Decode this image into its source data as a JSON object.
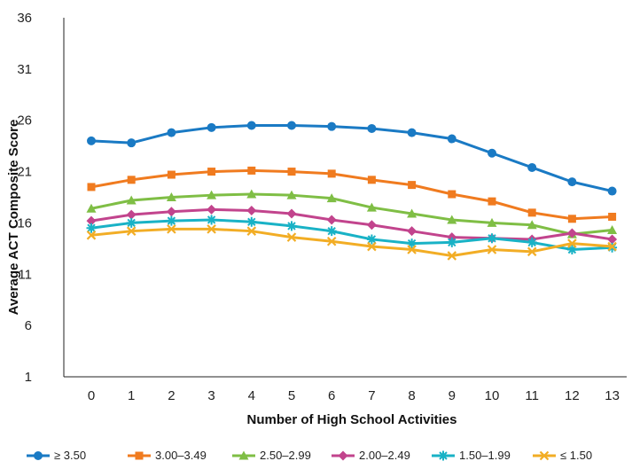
{
  "chart_data": {
    "type": "line",
    "xlabel": "Number of High School Activities",
    "ylabel": "Average ACT Composite Score",
    "x": [
      0,
      1,
      2,
      3,
      4,
      5,
      6,
      7,
      8,
      9,
      10,
      11,
      12,
      13
    ],
    "x_tick_labels": [
      "0",
      "1",
      "2",
      "3",
      "4",
      "5",
      "6",
      "7",
      "8",
      "9",
      "10",
      "11",
      "12",
      "13"
    ],
    "y_ticks": [
      1,
      6,
      11,
      16,
      21,
      26,
      31,
      36
    ],
    "y_tick_labels": [
      "1",
      "6",
      "11",
      "16",
      "21",
      "26",
      "31",
      "36"
    ],
    "ylim": [
      1,
      36
    ],
    "grid": false,
    "legend_position": "bottom",
    "series": [
      {
        "name": "≥ 3.50",
        "color": "#1a7ac4",
        "marker": "circle",
        "values": [
          24.0,
          23.8,
          24.8,
          25.3,
          25.5,
          25.5,
          25.4,
          25.2,
          24.8,
          24.2,
          22.8,
          21.4,
          20.0,
          19.1
        ]
      },
      {
        "name": "3.00–3.49",
        "color": "#f07b1f",
        "marker": "square",
        "values": [
          19.5,
          20.2,
          20.7,
          21.0,
          21.1,
          21.0,
          20.8,
          20.2,
          19.7,
          18.8,
          18.1,
          17.0,
          16.4,
          16.6
        ]
      },
      {
        "name": "2.50–2.99",
        "color": "#7fbe45",
        "marker": "triangle",
        "values": [
          17.4,
          18.2,
          18.5,
          18.7,
          18.8,
          18.7,
          18.4,
          17.5,
          16.9,
          16.3,
          16.0,
          15.8,
          14.9,
          15.3
        ]
      },
      {
        "name": "2.00–2.49",
        "color": "#c2448d",
        "marker": "diamond",
        "values": [
          16.2,
          16.8,
          17.1,
          17.3,
          17.2,
          16.9,
          16.3,
          15.8,
          15.2,
          14.6,
          14.5,
          14.4,
          15.0,
          14.4
        ]
      },
      {
        "name": "1.50–1.99",
        "color": "#19b2c6",
        "marker": "asterisk",
        "values": [
          15.5,
          16.0,
          16.2,
          16.3,
          16.1,
          15.7,
          15.2,
          14.4,
          14.0,
          14.1,
          14.5,
          14.1,
          13.4,
          13.6
        ]
      },
      {
        "name": "≤ 1.50",
        "color": "#f2ad25",
        "marker": "x",
        "values": [
          14.8,
          15.2,
          15.4,
          15.4,
          15.2,
          14.6,
          14.2,
          13.7,
          13.4,
          12.8,
          13.4,
          13.2,
          14.0,
          13.7
        ]
      }
    ]
  }
}
